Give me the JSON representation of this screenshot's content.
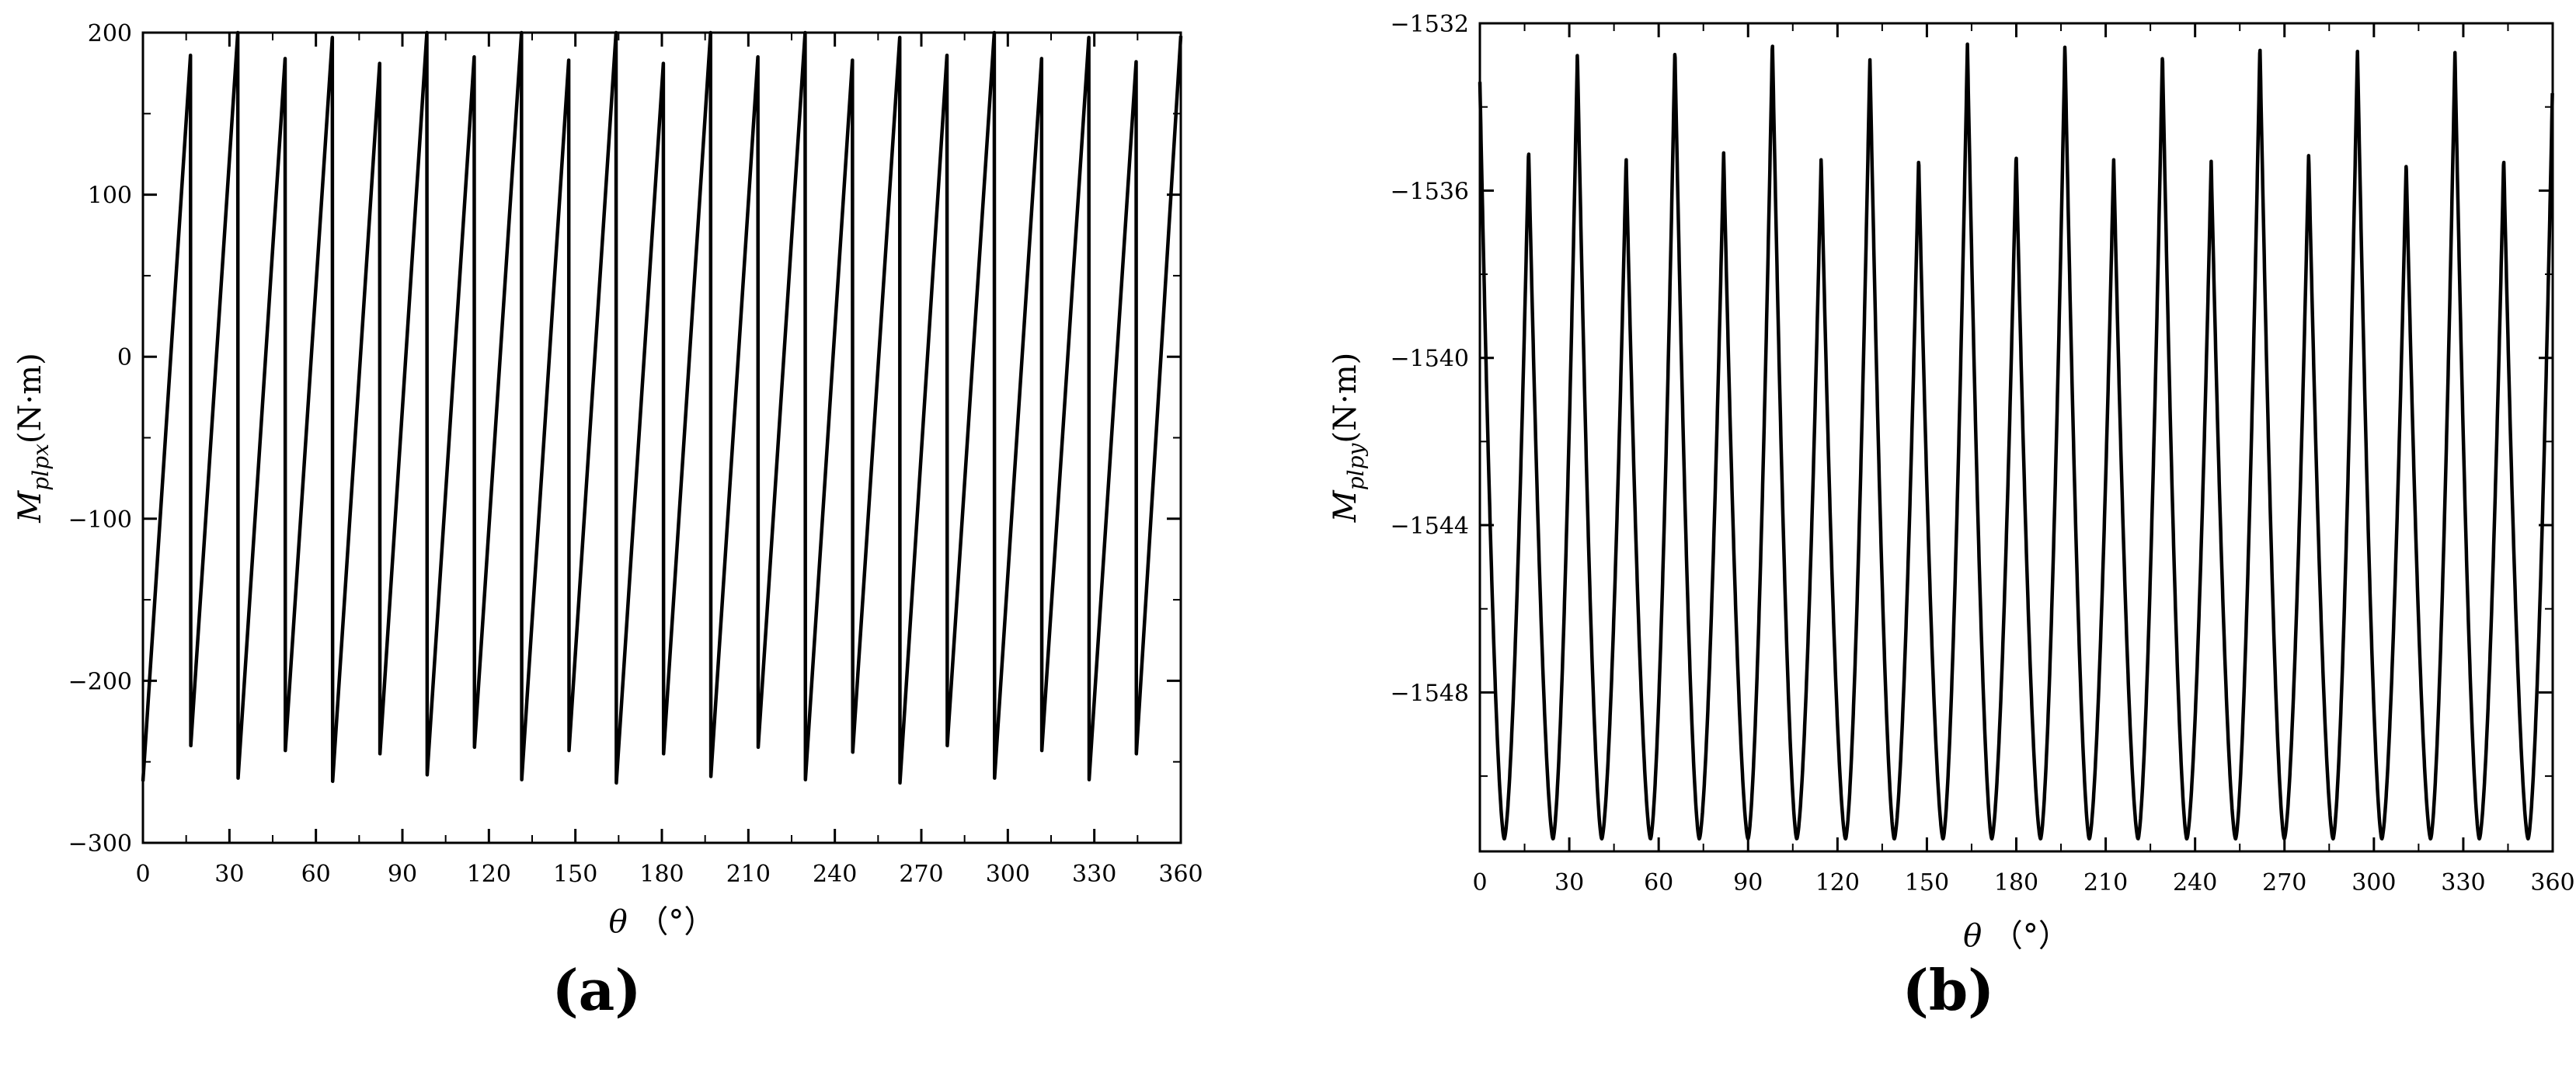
{
  "chart_data": [
    {
      "type": "line",
      "panel": "(a)",
      "panel_letter": "a",
      "xlabel": {
        "symbol": "θ",
        "unit": "（°）"
      },
      "ylabel": {
        "symbol": "M",
        "subscript": "plpx",
        "unit": "(N·m)"
      },
      "xlim": [
        0,
        360
      ],
      "ylim": [
        -300,
        200
      ],
      "xticks": [
        0,
        30,
        60,
        90,
        120,
        150,
        180,
        210,
        240,
        270,
        300,
        330,
        360
      ],
      "yticks": [
        -300,
        -200,
        -100,
        0,
        100,
        200
      ],
      "ytick_labels": [
        "−300",
        "−200",
        "−100",
        "0",
        "100",
        "200"
      ],
      "grid": false,
      "series": [
        {
          "points": [
            [
              0,
              -262
            ],
            [
              16.5,
              186
            ],
            [
              16.6,
              -240
            ],
            [
              32.9,
              200
            ],
            [
              33.0,
              -260
            ],
            [
              49.3,
              184
            ],
            [
              49.4,
              -243
            ],
            [
              65.7,
              197
            ],
            [
              65.8,
              -262
            ],
            [
              82.1,
              181
            ],
            [
              82.2,
              -245
            ],
            [
              98.5,
              200
            ],
            [
              98.6,
              -258
            ],
            [
              114.9,
              185
            ],
            [
              115.0,
              -241
            ],
            [
              131.3,
              200
            ],
            [
              131.4,
              -261
            ],
            [
              147.7,
              183
            ],
            [
              147.8,
              -243
            ],
            [
              164.1,
              200
            ],
            [
              164.2,
              -263
            ],
            [
              180.5,
              181
            ],
            [
              180.6,
              -245
            ],
            [
              196.9,
              200
            ],
            [
              197.0,
              -259
            ],
            [
              213.3,
              185
            ],
            [
              213.4,
              -241
            ],
            [
              229.7,
              200
            ],
            [
              229.8,
              -261
            ],
            [
              246.1,
              183
            ],
            [
              246.2,
              -244
            ],
            [
              262.5,
              197
            ],
            [
              262.6,
              -263
            ],
            [
              278.9,
              186
            ],
            [
              279.0,
              -240
            ],
            [
              295.3,
              200
            ],
            [
              295.4,
              -260
            ],
            [
              311.7,
              184
            ],
            [
              311.8,
              -243
            ],
            [
              328.1,
              197
            ],
            [
              328.2,
              -261
            ],
            [
              344.5,
              182
            ],
            [
              344.6,
              -245
            ],
            [
              360,
              198
            ]
          ]
        }
      ]
    },
    {
      "type": "line",
      "panel": "(b)",
      "panel_letter": "b",
      "xlabel": {
        "symbol": "θ",
        "unit": "（°）"
      },
      "ylabel": {
        "symbol": "M",
        "subscript": "plpy",
        "unit": "(N·m)"
      },
      "xlim": [
        0,
        360
      ],
      "ylim": [
        -1551.8,
        -1532
      ],
      "xticks": [
        0,
        30,
        60,
        90,
        120,
        150,
        180,
        210,
        240,
        270,
        300,
        330,
        360
      ],
      "yticks": [
        -1548,
        -1544,
        -1540,
        -1536,
        -1532
      ],
      "ytick_labels": [
        "−1548",
        "−1544",
        "−1540",
        "−1536",
        "−1532"
      ],
      "grid": false,
      "period": 16.36,
      "trough_value": -1551.5,
      "peak_values": [
        -1533.4,
        -1535.0,
        -1532.7,
        -1535.2,
        -1532.6,
        -1535.1,
        -1532.4,
        -1535.2,
        -1532.8,
        -1535.2,
        -1532.5,
        -1535.1,
        -1532.5,
        -1535.2,
        -1532.7,
        -1535.3,
        -1532.5,
        -1535.1,
        -1532.6,
        -1535.3,
        -1532.7,
        -1535.2,
        -1533.6
      ]
    }
  ],
  "captions": {
    "a": "a",
    "b": "b"
  }
}
